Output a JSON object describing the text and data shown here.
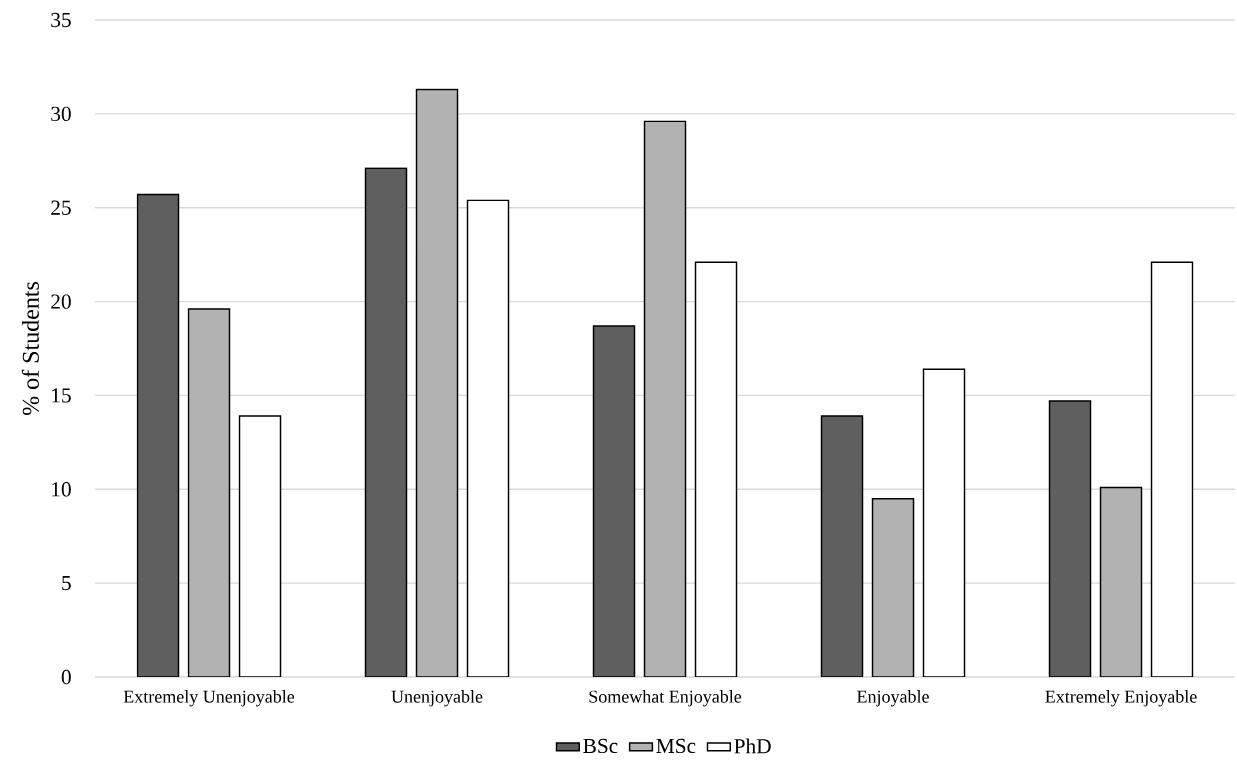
{
  "chart_data": {
    "type": "bar",
    "ylabel": "% of Students",
    "categories": [
      "Extremely Unenjoyable",
      "Unenjoyable",
      "Somewhat Enjoyable",
      "Enjoyable",
      "Extremely Enjoyable"
    ],
    "series": [
      {
        "name": "BSc",
        "color": "#5f5f5f",
        "values": [
          25.7,
          27.1,
          18.7,
          13.9,
          14.7
        ]
      },
      {
        "name": "MSc",
        "color": "#b2b2b2",
        "values": [
          19.6,
          31.3,
          29.6,
          9.5,
          10.1
        ]
      },
      {
        "name": "PhD",
        "color": "#ffffff",
        "values": [
          13.9,
          25.4,
          22.1,
          16.4,
          22.1
        ]
      }
    ],
    "ylim": [
      0,
      35
    ],
    "yticks": [
      0,
      5,
      10,
      15,
      20,
      25,
      30,
      35
    ],
    "grid": "y",
    "legend": "bottom"
  }
}
